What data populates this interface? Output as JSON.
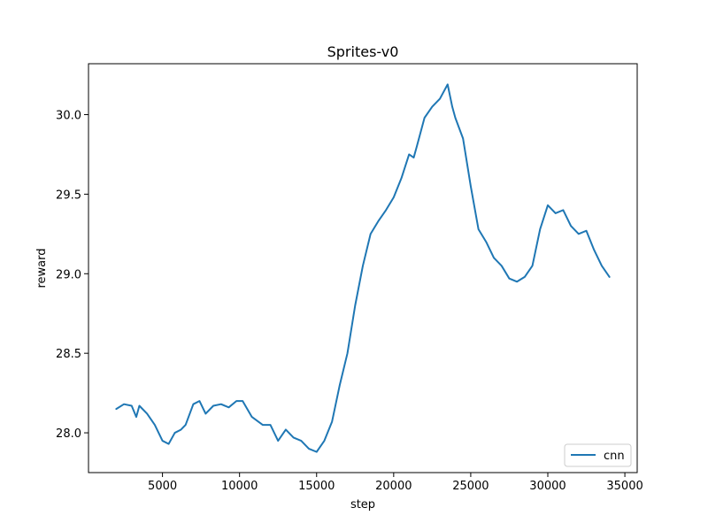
{
  "chart_data": {
    "type": "line",
    "title": "Sprites-v0",
    "xlabel": "step",
    "ylabel": "reward",
    "xlim": [
      200,
      35800
    ],
    "ylim": [
      27.75,
      30.32
    ],
    "xticks": [
      5000,
      10000,
      15000,
      20000,
      25000,
      30000,
      35000
    ],
    "xtick_labels": [
      "5000",
      "10000",
      "15000",
      "20000",
      "25000",
      "30000",
      "35000"
    ],
    "yticks": [
      28.0,
      28.5,
      29.0,
      29.5,
      30.0
    ],
    "ytick_labels": [
      "28.0",
      "28.5",
      "29.0",
      "29.5",
      "30.0"
    ],
    "grid": false,
    "legend_position": "lower-right",
    "series": [
      {
        "name": "cnn",
        "color": "#1f77b4",
        "x": [
          2000,
          2500,
          3000,
          3300,
          3500,
          4000,
          4500,
          5000,
          5400,
          5800,
          6200,
          6500,
          7000,
          7400,
          7800,
          8300,
          8800,
          9300,
          9800,
          10200,
          10800,
          11500,
          12000,
          12500,
          13000,
          13500,
          14000,
          14500,
          15000,
          15500,
          16000,
          16500,
          17000,
          17500,
          18000,
          18500,
          19000,
          19500,
          20000,
          20500,
          21000,
          21300,
          21500,
          22000,
          22500,
          23000,
          23500,
          23800,
          24000,
          24500,
          25000,
          25500,
          26000,
          26500,
          27000,
          27500,
          28000,
          28500,
          29000,
          29500,
          30000,
          30500,
          31000,
          31500,
          32000,
          32500,
          33000,
          33500,
          34000
        ],
        "values": [
          28.15,
          28.18,
          28.17,
          28.1,
          28.17,
          28.12,
          28.05,
          27.95,
          27.93,
          28.0,
          28.02,
          28.05,
          28.18,
          28.2,
          28.12,
          28.17,
          28.18,
          28.16,
          28.2,
          28.2,
          28.1,
          28.05,
          28.05,
          27.95,
          28.02,
          27.97,
          27.95,
          27.9,
          27.88,
          27.95,
          28.07,
          28.3,
          28.5,
          28.8,
          29.05,
          29.25,
          29.33,
          29.4,
          29.48,
          29.6,
          29.75,
          29.73,
          29.8,
          29.98,
          30.05,
          30.1,
          30.19,
          30.05,
          29.98,
          29.85,
          29.55,
          29.28,
          29.2,
          29.1,
          29.05,
          28.97,
          28.95,
          28.98,
          29.05,
          29.28,
          29.43,
          29.38,
          29.4,
          29.3,
          29.25,
          29.27,
          29.15,
          29.05,
          28.98
        ]
      }
    ]
  }
}
